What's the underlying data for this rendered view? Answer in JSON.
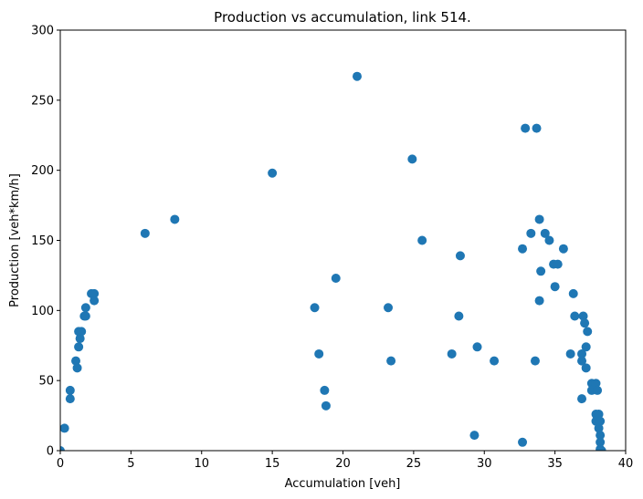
{
  "chart_data": {
    "type": "scatter",
    "title": "Production vs accumulation, link 514.",
    "xlabel": "Accumulation [veh]",
    "ylabel": "Production [veh*km/h]",
    "xlim": [
      0,
      40
    ],
    "ylim": [
      0,
      300
    ],
    "xticks": [
      0,
      5,
      10,
      15,
      20,
      25,
      30,
      35,
      40
    ],
    "yticks": [
      0,
      50,
      100,
      150,
      200,
      250,
      300
    ],
    "grid": false,
    "marker_color": "#1f77b4",
    "series": [
      {
        "points": [
          [
            0.0,
            0
          ],
          [
            0.3,
            16
          ],
          [
            0.7,
            43
          ],
          [
            0.7,
            37
          ],
          [
            1.1,
            64
          ],
          [
            1.2,
            59
          ],
          [
            1.3,
            85
          ],
          [
            1.4,
            80
          ],
          [
            1.3,
            74
          ],
          [
            1.5,
            85
          ],
          [
            1.7,
            96
          ],
          [
            1.8,
            96
          ],
          [
            1.8,
            102
          ],
          [
            2.2,
            112
          ],
          [
            2.4,
            112
          ],
          [
            2.4,
            107
          ],
          [
            6.0,
            155
          ],
          [
            8.1,
            165
          ],
          [
            15.0,
            198
          ],
          [
            18.0,
            102
          ],
          [
            18.3,
            69
          ],
          [
            18.7,
            43
          ],
          [
            18.8,
            32
          ],
          [
            19.5,
            123
          ],
          [
            21.0,
            267
          ],
          [
            23.2,
            102
          ],
          [
            23.4,
            64
          ],
          [
            24.9,
            208
          ],
          [
            25.6,
            150
          ],
          [
            27.7,
            69
          ],
          [
            28.2,
            96
          ],
          [
            28.3,
            139
          ],
          [
            29.3,
            11
          ],
          [
            29.5,
            74
          ],
          [
            30.7,
            64
          ],
          [
            32.7,
            6
          ],
          [
            32.7,
            144
          ],
          [
            32.9,
            230
          ],
          [
            33.3,
            155
          ],
          [
            33.6,
            64
          ],
          [
            33.7,
            230
          ],
          [
            33.9,
            165
          ],
          [
            33.9,
            107
          ],
          [
            34.0,
            128
          ],
          [
            34.3,
            155
          ],
          [
            34.6,
            150
          ],
          [
            34.9,
            133
          ],
          [
            35.0,
            117
          ],
          [
            35.2,
            133
          ],
          [
            35.6,
            144
          ],
          [
            36.1,
            69
          ],
          [
            36.3,
            112
          ],
          [
            36.4,
            96
          ],
          [
            36.9,
            69
          ],
          [
            36.9,
            64
          ],
          [
            36.9,
            37
          ],
          [
            37.0,
            96
          ],
          [
            37.1,
            91
          ],
          [
            37.2,
            59
          ],
          [
            37.2,
            74
          ],
          [
            37.3,
            85
          ],
          [
            37.6,
            48
          ],
          [
            37.6,
            43
          ],
          [
            37.9,
            48
          ],
          [
            37.9,
            26
          ],
          [
            37.9,
            21
          ],
          [
            38.0,
            43
          ],
          [
            38.1,
            26
          ],
          [
            38.1,
            16
          ],
          [
            38.2,
            21
          ],
          [
            38.2,
            11
          ],
          [
            38.2,
            6
          ],
          [
            38.2,
            1
          ],
          [
            38.3,
            0
          ]
        ]
      }
    ]
  }
}
